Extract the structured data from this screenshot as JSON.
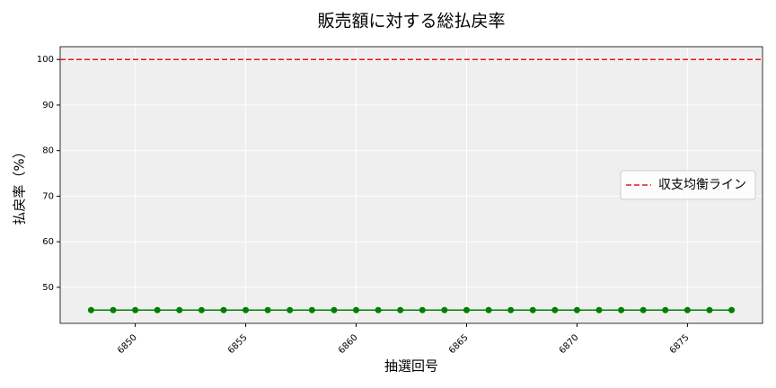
{
  "chart_data": {
    "type": "line",
    "title": "販売額に対する総払戻率",
    "x_label": "抽選回号",
    "y_label": "払戻率（%）",
    "x": [
      6848,
      6849,
      6850,
      6851,
      6852,
      6853,
      6854,
      6855,
      6856,
      6857,
      6858,
      6859,
      6860,
      6861,
      6862,
      6863,
      6864,
      6865,
      6866,
      6867,
      6868,
      6869,
      6870,
      6871,
      6872,
      6873,
      6874,
      6875,
      6876,
      6877
    ],
    "series": [
      {
        "color": "#008000",
        "values": [
          45,
          45,
          45,
          45,
          45,
          45,
          45,
          45,
          45,
          45,
          45,
          45,
          45,
          45,
          45,
          45,
          45,
          45,
          45,
          45,
          45,
          45,
          45,
          45,
          45,
          45,
          45,
          45,
          45,
          45
        ]
      }
    ],
    "reference_lines": [
      {
        "y": 100,
        "name": "収支均衡ライン",
        "color": "#e41a1c",
        "style": "dashed"
      }
    ],
    "xlim": [
      6846.6,
      6878.4
    ],
    "xticks": [
      6850,
      6855,
      6860,
      6865,
      6870,
      6875
    ],
    "ylim": [
      42.1,
      102.8
    ],
    "yticks": [
      50,
      60,
      70,
      80,
      90,
      100
    ],
    "grid": true,
    "legend": "center right"
  }
}
